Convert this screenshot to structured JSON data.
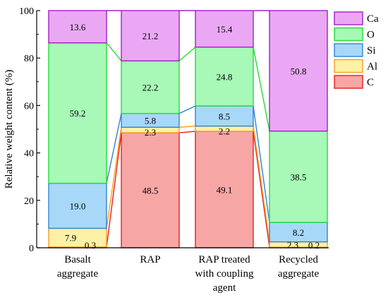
{
  "chart_data": {
    "type": "bar",
    "stacked": true,
    "connect_stacks": true,
    "categories": [
      "Basalt\naggregate",
      "RAP",
      "RAP treated\nwith coupling\nagent",
      "Recycled\naggregate"
    ],
    "series": [
      {
        "name": "C",
        "values": [
          0.3,
          48.5,
          49.1,
          0.2
        ],
        "fill": "#f7a6a6",
        "stroke": "#ee1c1c"
      },
      {
        "name": "Al",
        "values": [
          7.9,
          2.3,
          2.2,
          2.3
        ],
        "fill": "#fff0a8",
        "stroke": "#f4a020"
      },
      {
        "name": "Si",
        "values": [
          19.0,
          5.8,
          8.5,
          8.2
        ],
        "fill": "#a8d8f8",
        "stroke": "#2e86d4"
      },
      {
        "name": "O",
        "values": [
          59.2,
          22.2,
          24.8,
          38.5
        ],
        "fill": "#a8f8b8",
        "stroke": "#22dd33"
      },
      {
        "name": "Ca",
        "values": [
          13.6,
          21.2,
          15.4,
          50.8
        ],
        "fill": "#eaa8f4",
        "stroke": "#a020c8"
      }
    ],
    "labels": [
      [
        "0.3",
        "7.9",
        "19.0",
        "59.2",
        "13.6"
      ],
      [
        "48.5",
        "2.3",
        "5.8",
        "22.2",
        "21.2"
      ],
      [
        "49.1",
        "2.2",
        "8.5",
        "24.8",
        "15.4"
      ],
      [
        "0.2",
        "2.3",
        "8.2",
        "38.5",
        "50.8"
      ]
    ],
    "title": "",
    "xlabel": "",
    "ylabel": "Relative weight content (%)",
    "ylim": [
      0,
      100
    ],
    "yticks": [
      0,
      20,
      40,
      60,
      80,
      100
    ],
    "legend": {
      "placement": "top-right",
      "order": [
        "Ca",
        "O",
        "Si",
        "Al",
        "C"
      ]
    },
    "grid": false
  }
}
